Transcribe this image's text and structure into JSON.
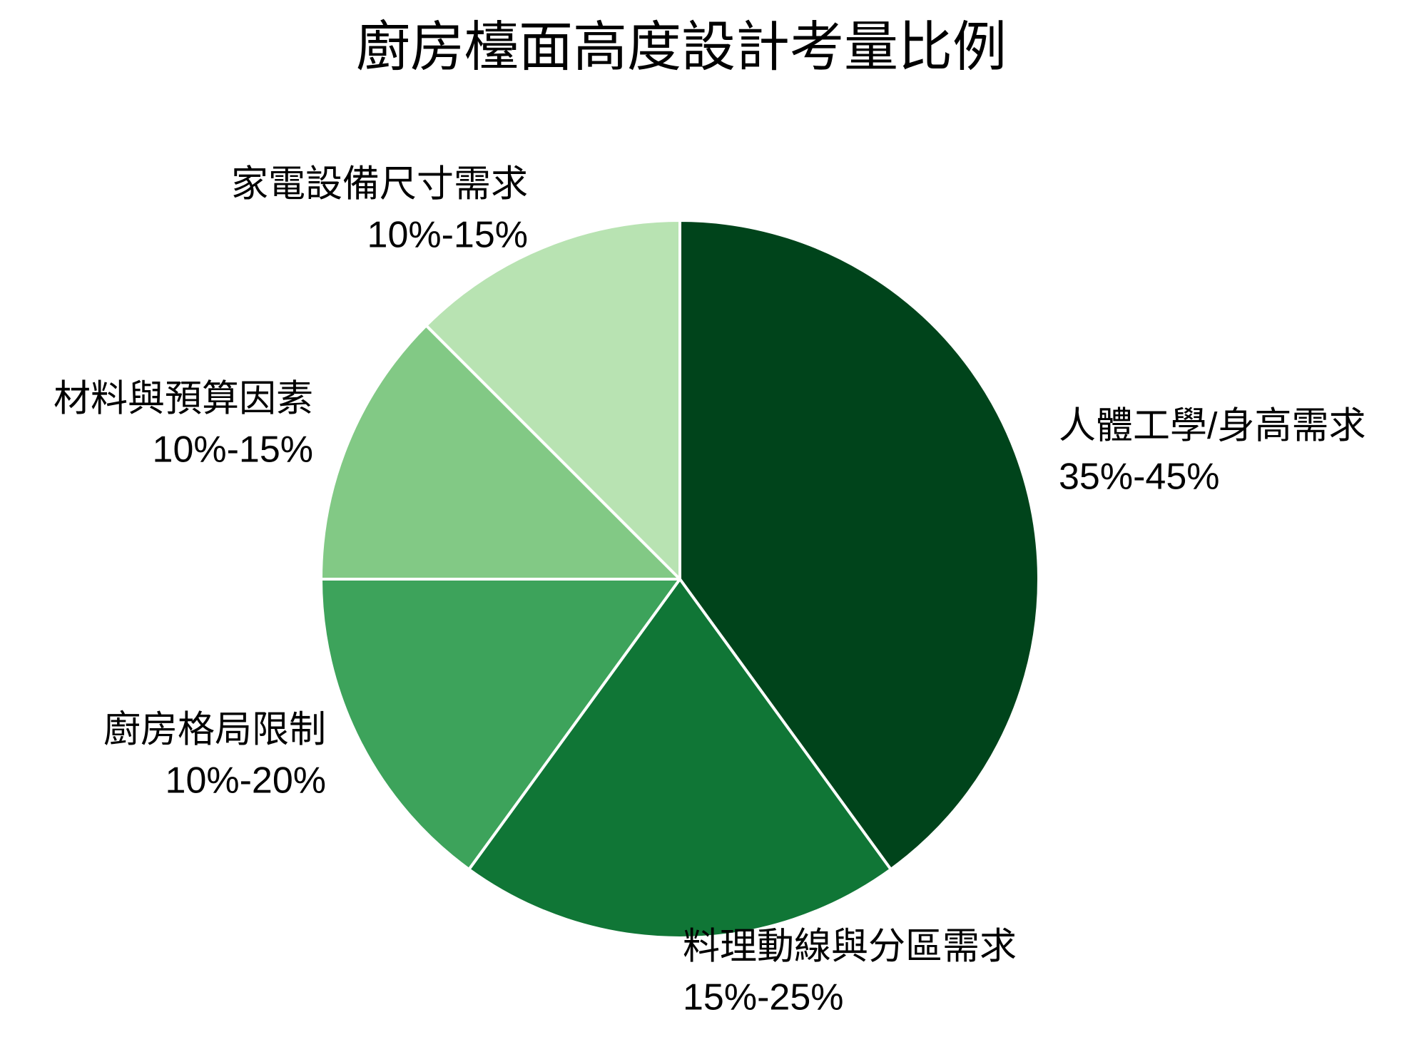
{
  "chart_data": {
    "type": "pie",
    "title": "廚房檯面高度設計考量比例",
    "categories": [
      "人體工學/身高需求",
      "料理動線與分區需求",
      "廚房格局限制",
      "材料與預算因素",
      "家電設備尺寸需求"
    ],
    "values": [
      40,
      20,
      15,
      12.5,
      12.5
    ],
    "value_labels": [
      "35%-45%",
      "15%-25%",
      "10%-20%",
      "10%-15%",
      "10%-15%"
    ],
    "colors": [
      "#00441b",
      "#107636",
      "#3da35b",
      "#82c985",
      "#b8e3b2"
    ]
  }
}
